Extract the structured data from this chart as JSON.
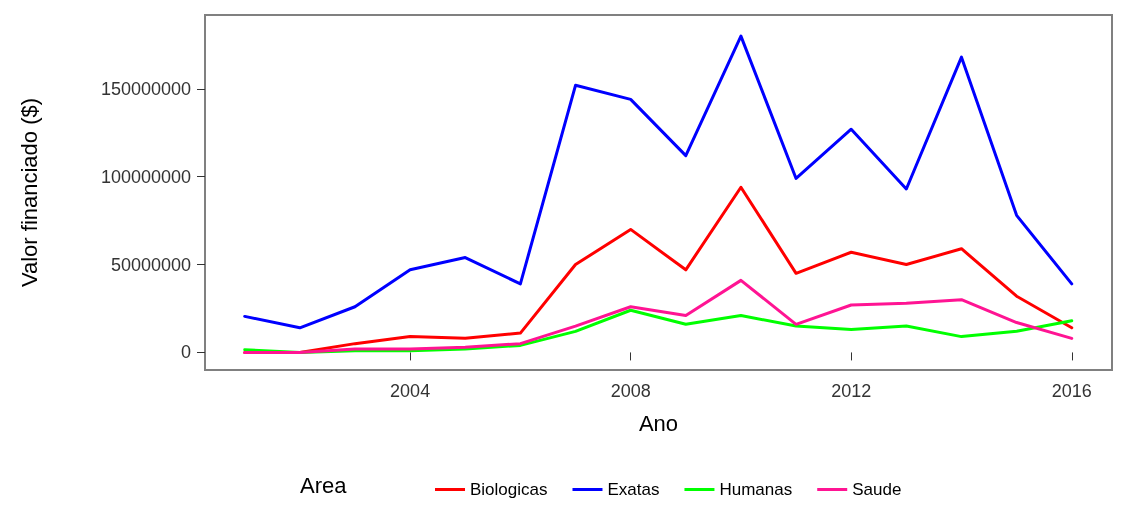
{
  "chart_data": {
    "type": "line",
    "xlabel": "Ano",
    "ylabel": "Valor financiado ($)",
    "legend_title": "Area",
    "x": [
      2001,
      2002,
      2003,
      2004,
      2005,
      2006,
      2007,
      2008,
      2009,
      2010,
      2011,
      2012,
      2013,
      2014,
      2015,
      2016
    ],
    "series": [
      {
        "name": "Biologicas",
        "color": "#ff0000",
        "values": [
          0,
          0,
          5000000,
          9000000,
          8000000,
          11000000,
          50000000,
          70000000,
          47000000,
          94000000,
          45000000,
          57000000,
          50000000,
          59000000,
          32000000,
          14000000
        ]
      },
      {
        "name": "Exatas",
        "color": "#0000ff",
        "values": [
          20500000,
          14000000,
          26000000,
          47000000,
          54000000,
          39000000,
          152000000,
          144000000,
          112000000,
          180000000,
          99000000,
          127000000,
          93000000,
          168000000,
          78000000,
          39000000
        ]
      },
      {
        "name": "Humanas",
        "color": "#00ff00",
        "values": [
          1500000,
          0,
          1000000,
          1000000,
          2000000,
          4000000,
          12000000,
          24000000,
          16000000,
          21000000,
          15000000,
          13000000,
          15000000,
          9000000,
          12000000,
          18000000
        ]
      },
      {
        "name": "Saude",
        "color": "#ff1493",
        "values": [
          0,
          0,
          2000000,
          2000000,
          3000000,
          5000000,
          15000000,
          26000000,
          21000000,
          41000000,
          16000000,
          27000000,
          28000000,
          30000000,
          17000000,
          8000000
        ]
      }
    ],
    "xlim": [
      2000.28,
      2016.73
    ],
    "xticks": [
      2004,
      2008,
      2012,
      2016
    ],
    "ylim": [
      -10000000,
      192000000
    ],
    "yticks": [
      0,
      50000000,
      100000000,
      150000000
    ],
    "grid": false,
    "legend": "bottom",
    "marker": "none",
    "line_style": "solid"
  }
}
